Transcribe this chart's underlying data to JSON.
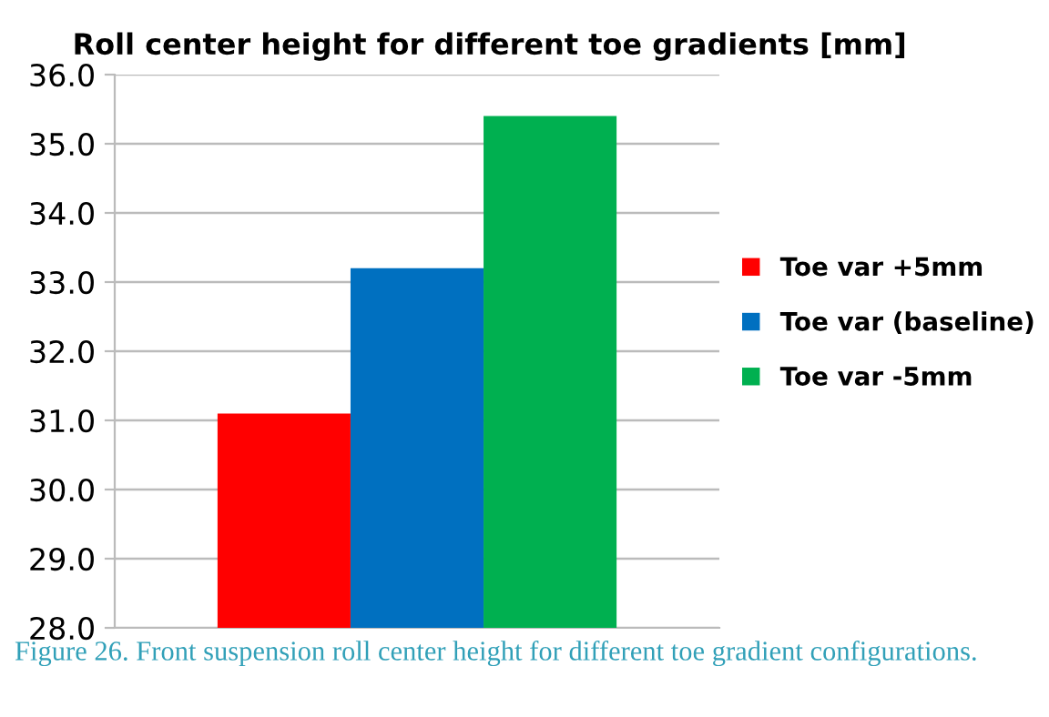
{
  "chart_data": {
    "type": "bar",
    "title": "Roll center height for different toe gradients [mm]",
    "categories": [
      null
    ],
    "series": [
      {
        "name": "Toe var +5mm",
        "color": "#ff0000",
        "values": [
          31.1
        ]
      },
      {
        "name": "Toe var (baseline)",
        "color": "#0070c0",
        "values": [
          33.2
        ]
      },
      {
        "name": "Toe var -5mm",
        "color": "#00b050",
        "values": [
          35.4
        ]
      }
    ],
    "ylim": [
      28,
      36
    ],
    "yticks": [
      {
        "value": 28,
        "label": "28.0"
      },
      {
        "value": 29,
        "label": "29.0"
      },
      {
        "value": 30,
        "label": "30.0"
      },
      {
        "value": 31,
        "label": "31.0"
      },
      {
        "value": 32,
        "label": "32.0"
      },
      {
        "value": 33,
        "label": "33.0"
      },
      {
        "value": 34,
        "label": "34.0"
      },
      {
        "value": 35,
        "label": "35.0"
      },
      {
        "value": 36,
        "label": "36.0"
      }
    ],
    "grid": "y",
    "legend": "right",
    "annotations": [
      "Figure 26. Front suspension roll center height for different toe gradient configurations."
    ]
  }
}
